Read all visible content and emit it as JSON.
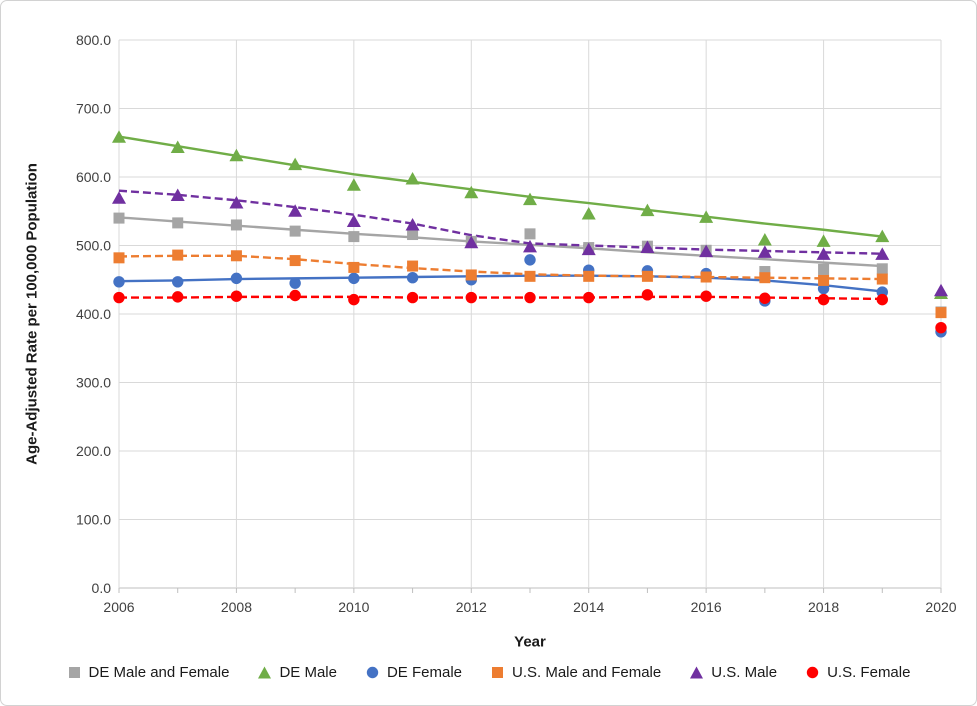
{
  "chart_data": {
    "type": "scatter",
    "title": "",
    "xlabel": "Year",
    "ylabel": "Age-Adjusted Rate per 100,000 Population",
    "x": [
      2006,
      2007,
      2008,
      2009,
      2010,
      2011,
      2012,
      2013,
      2014,
      2015,
      2016,
      2017,
      2018,
      2019,
      2020
    ],
    "x_tick_labels": [
      "2006",
      "2008",
      "2010",
      "2012",
      "2014",
      "2016",
      "2018",
      "2020"
    ],
    "y_tick_labels": [
      "0.0",
      "100.0",
      "200.0",
      "300.0",
      "400.0",
      "500.0",
      "600.0",
      "700.0",
      "800.0"
    ],
    "ylim": [
      0,
      800
    ],
    "xlim": [
      2006,
      2020
    ],
    "grid": true,
    "legend_position": "bottom",
    "trend_years": [
      2006,
      2019
    ],
    "series": [
      {
        "name": "DE Male and Female",
        "color": "#A5A5A5",
        "marker": "square",
        "line": "solid",
        "values": [
          540,
          533,
          530,
          521,
          513,
          516,
          506,
          517,
          497,
          499,
          493,
          462,
          465,
          466,
          403
        ],
        "trend": [
          541,
          535,
          529,
          523,
          517,
          512,
          506,
          501,
          496,
          490,
          485,
          480,
          475,
          470
        ]
      },
      {
        "name": "DE Male",
        "color": "#70AD47",
        "marker": "triangle",
        "line": "solid",
        "values": [
          658,
          643,
          631,
          618,
          588,
          597,
          577,
          567,
          546,
          551,
          541,
          508,
          506,
          513,
          430
        ],
        "trend": [
          659,
          645,
          631,
          617,
          604,
          593,
          582,
          571,
          562,
          552,
          542,
          532,
          523,
          513
        ]
      },
      {
        "name": "DE Female",
        "color": "#4472C4",
        "marker": "circle",
        "line": "solid",
        "values": [
          447,
          447,
          452,
          445,
          452,
          453,
          450,
          479,
          464,
          463,
          459,
          419,
          437,
          432,
          374
        ],
        "trend": [
          448,
          449,
          451,
          452,
          453,
          454,
          455,
          456,
          456,
          455,
          453,
          449,
          442,
          433
        ]
      },
      {
        "name": "U.S. Male and Female",
        "color": "#ED7D31",
        "marker": "square",
        "line": "dashed",
        "values": [
          482,
          486,
          485,
          478,
          468,
          470,
          457,
          455,
          455,
          455,
          454,
          453,
          449,
          451,
          402
        ],
        "trend": [
          484,
          485,
          485,
          480,
          473,
          467,
          462,
          458,
          456,
          455,
          454,
          453,
          452,
          451
        ]
      },
      {
        "name": "U.S. Male",
        "color": "#7030A0",
        "marker": "triangle",
        "line": "dashed",
        "values": [
          569,
          573,
          562,
          550,
          535,
          530,
          504,
          498,
          494,
          497,
          491,
          490,
          487,
          487,
          434
        ],
        "trend": [
          580,
          574,
          566,
          556,
          545,
          532,
          515,
          503,
          500,
          497,
          494,
          492,
          490,
          488
        ]
      },
      {
        "name": "U.S. Female",
        "color": "#FF0000",
        "marker": "circle",
        "line": "dashed",
        "values": [
          424,
          425,
          426,
          427,
          421,
          424,
          424,
          424,
          424,
          428,
          426,
          423,
          421,
          421,
          380
        ],
        "trend": [
          424,
          424,
          425,
          425,
          425,
          424,
          424,
          424,
          424,
          425,
          425,
          424,
          423,
          422
        ]
      }
    ],
    "colors": {
      "gridline": "#D9D9D9",
      "axis_line": "#BFBFBF",
      "tick_label": "#404040"
    }
  }
}
